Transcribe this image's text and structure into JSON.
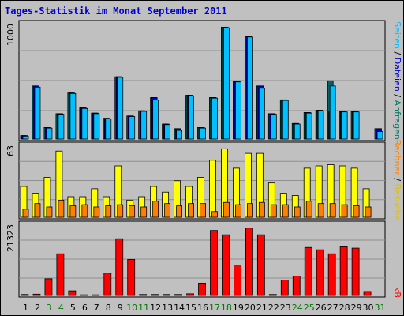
{
  "title": "Tages-Statistik im Monat September 2011",
  "colors": {
    "background": "#c0c0c0",
    "panel": "#c0c0c0",
    "grid": "#909090",
    "hits": "#006666",
    "files": "#0000cc",
    "pages": "#00c0ff",
    "visits": "#ffff00",
    "sites": "#ff8000",
    "kbytes": "#ff0000",
    "weekend_label": "#007a00",
    "weekday_label": "#000000",
    "title": "#0000cc"
  },
  "legend": {
    "top": [
      {
        "text": "Anfragen",
        "color": "#007a66"
      },
      {
        "text": "Dateien",
        "color": "#0000cc"
      },
      {
        "text": "Seiten",
        "color": "#00c0ff"
      }
    ],
    "middle": [
      {
        "text": "Besuche",
        "color": "#e0c000"
      },
      {
        "text": "Rechner",
        "color": "#ff8000"
      }
    ],
    "bottom": [
      {
        "text": "kB",
        "color": "#ff0000"
      }
    ],
    "separator": " / "
  },
  "chart_data": [
    {
      "type": "bar",
      "panel": "top",
      "ytick": "1000",
      "ymax": 1000,
      "categories": [
        "1",
        "2",
        "3",
        "4",
        "5",
        "6",
        "7",
        "8",
        "9",
        "10",
        "11",
        "12",
        "13",
        "14",
        "15",
        "16",
        "17",
        "18",
        "19",
        "20",
        "21",
        "22",
        "23",
        "24",
        "25",
        "26",
        "27",
        "28",
        "29",
        "30",
        "31"
      ],
      "weekend": [
        "3",
        "4",
        "10",
        "11",
        "17",
        "18",
        "24",
        "25",
        "31"
      ],
      "series": [
        {
          "name": "Anfragen",
          "color": "#006666",
          "values": [
            30,
            460,
            100,
            220,
            400,
            270,
            225,
            180,
            540,
            200,
            245,
            360,
            130,
            90,
            380,
            100,
            360,
            970,
            500,
            890,
            460,
            220,
            340,
            135,
            230,
            250,
            505,
            240,
            240,
            0,
            90
          ]
        },
        {
          "name": "Dateien",
          "color": "#0000cc",
          "values": [
            30,
            460,
            100,
            220,
            400,
            270,
            225,
            180,
            540,
            200,
            245,
            360,
            130,
            90,
            380,
            100,
            360,
            970,
            500,
            890,
            460,
            220,
            340,
            135,
            230,
            250,
            240,
            240,
            240,
            0,
            90
          ]
        },
        {
          "name": "Seiten",
          "color": "#00c0ff",
          "values": [
            25,
            450,
            95,
            215,
            395,
            265,
            220,
            175,
            535,
            195,
            240,
            340,
            125,
            75,
            375,
            95,
            355,
            965,
            495,
            885,
            440,
            215,
            335,
            130,
            225,
            245,
            460,
            235,
            235,
            0,
            65
          ]
        }
      ]
    },
    {
      "type": "bar",
      "panel": "middle",
      "ytick": "63",
      "ymax": 63,
      "categories": [
        "1",
        "2",
        "3",
        "4",
        "5",
        "6",
        "7",
        "8",
        "9",
        "10",
        "11",
        "12",
        "13",
        "14",
        "15",
        "16",
        "17",
        "18",
        "19",
        "20",
        "21",
        "22",
        "23",
        "24",
        "25",
        "26",
        "27",
        "28",
        "29",
        "30",
        "31"
      ],
      "series": [
        {
          "name": "Besuche",
          "color": "#ffff00",
          "values": [
            27,
            21,
            35,
            58,
            18,
            18,
            25,
            18,
            45,
            15,
            18,
            27,
            22,
            32,
            27,
            35,
            50,
            60,
            43,
            56,
            56,
            30,
            21,
            19,
            43,
            45,
            46,
            45,
            43,
            25,
            0
          ]
        },
        {
          "name": "Rechner",
          "color": "#ff8000",
          "values": [
            7,
            12,
            9,
            15,
            10,
            11,
            9,
            10,
            11,
            10,
            9,
            14,
            12,
            10,
            12,
            12,
            5,
            13,
            11,
            12,
            13,
            11,
            11,
            9,
            14,
            12,
            12,
            11,
            10,
            9,
            0
          ]
        }
      ]
    },
    {
      "type": "bar",
      "panel": "bottom",
      "ytick": "21323",
      "ymax": 21323,
      "categories": [
        "1",
        "2",
        "3",
        "4",
        "5",
        "6",
        "7",
        "8",
        "9",
        "10",
        "11",
        "12",
        "13",
        "14",
        "15",
        "16",
        "17",
        "18",
        "19",
        "20",
        "21",
        "22",
        "23",
        "24",
        "25",
        "26",
        "27",
        "28",
        "29",
        "30",
        "31"
      ],
      "series": [
        {
          "name": "kB",
          "color": "#ff0000",
          "values": [
            300,
            400,
            5000,
            12500,
            1400,
            200,
            200,
            6700,
            17000,
            10800,
            300,
            300,
            300,
            300,
            500,
            3700,
            19500,
            18200,
            9100,
            20200,
            18200,
            300,
            4600,
            5800,
            14400,
            13700,
            12500,
            14600,
            14200,
            1200,
            0
          ]
        }
      ]
    }
  ]
}
